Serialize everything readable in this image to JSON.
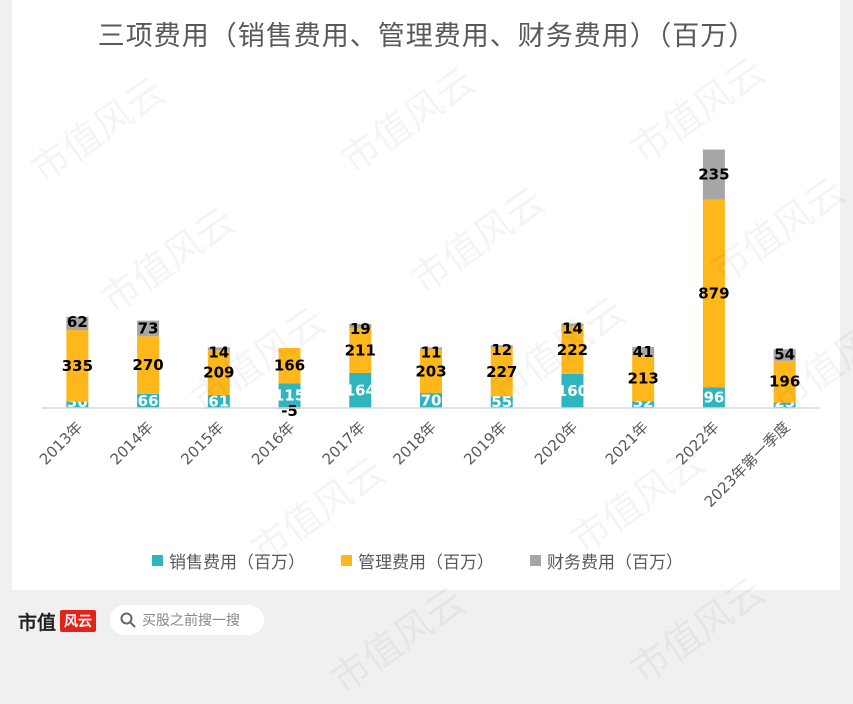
{
  "title": "三项费用（销售费用、管理费用、财务费用）（百万）",
  "chart_data": {
    "type": "bar",
    "stacked": true,
    "categories": [
      "2013年",
      "2014年",
      "2015年",
      "2016年",
      "2017年",
      "2018年",
      "2019年",
      "2020年",
      "2021年",
      "2022年",
      "2023年第一季度"
    ],
    "series": [
      {
        "name": "销售费用（百万）",
        "color": "#2fb5c0",
        "values": [
          30,
          66,
          61,
          115,
          164,
          70,
          55,
          160,
          32,
          96,
          25
        ]
      },
      {
        "name": "管理费用（百万）",
        "color": "#ffb81c",
        "values": [
          335,
          270,
          209,
          166,
          211,
          203,
          227,
          222,
          213,
          879,
          196
        ]
      },
      {
        "name": "财务费用（百万）",
        "color": "#a6a6a6",
        "values": [
          62,
          73,
          14,
          -5,
          19,
          11,
          12,
          14,
          41,
          235,
          54
        ]
      }
    ],
    "legend_position": "bottom",
    "grid": false
  },
  "watermark": "市值风云",
  "footer": {
    "logo_text": "市值",
    "logo_badge": "风云",
    "search_placeholder": "买股之前搜一搜"
  }
}
